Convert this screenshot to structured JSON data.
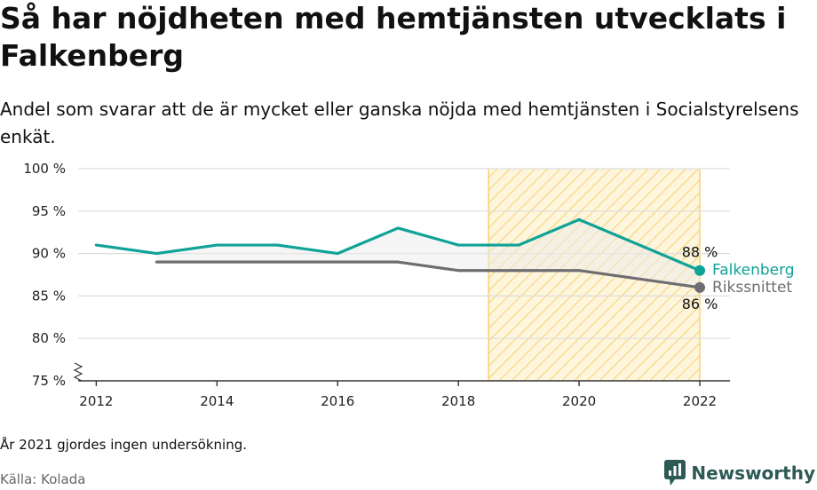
{
  "title": "Så har nöjdheten med hemtjänsten utvecklats i Falkenberg",
  "subtitle": "Andel som svarar att de är mycket eller ganska nöjda med hemtjänsten i Socialstyrelsens enkät.",
  "note": "År 2021 gjordes ingen undersökning.",
  "source": "Källa: Kolada",
  "brand": {
    "name": "Newsworthy"
  },
  "icons": {
    "brand_logo": "newsworthy-logo-icon",
    "axis_break": "axis-break-icon"
  },
  "chart_data": {
    "type": "line",
    "ylim": [
      75,
      100
    ],
    "xlim": [
      2011.7,
      2022.5
    ],
    "y_ticks": [
      75,
      80,
      85,
      90,
      95,
      100
    ],
    "y_tick_labels": [
      "75 %",
      "80 %",
      "85 %",
      "90 %",
      "95 %",
      "100 %"
    ],
    "x_ticks": [
      2012,
      2014,
      2016,
      2018,
      2020,
      2022
    ],
    "x_tick_labels": [
      "2012",
      "2014",
      "2016",
      "2018",
      "2020",
      "2022"
    ],
    "grid": true,
    "highlight_period": [
      2018.5,
      2022
    ],
    "colors": {
      "falkenberg": "#0fa296",
      "riket": "#6d6d72",
      "highlight": "#f6c955",
      "grid": "#dddddd"
    },
    "series": [
      {
        "name": "Falkenberg",
        "key": "falkenberg",
        "x": [
          2012,
          2013,
          2014,
          2015,
          2016,
          2017,
          2018,
          2019,
          2020,
          2022
        ],
        "values": [
          91,
          90,
          91,
          91,
          90,
          93,
          91,
          91,
          94,
          88
        ],
        "end_label": "88 %"
      },
      {
        "name": "Rikssnittet",
        "key": "riket",
        "x": [
          2013,
          2014,
          2015,
          2016,
          2017,
          2018,
          2019,
          2020,
          2022
        ],
        "values": [
          89,
          89,
          89,
          89,
          89,
          88,
          88,
          88,
          86
        ],
        "end_label": "86 %"
      }
    ]
  }
}
